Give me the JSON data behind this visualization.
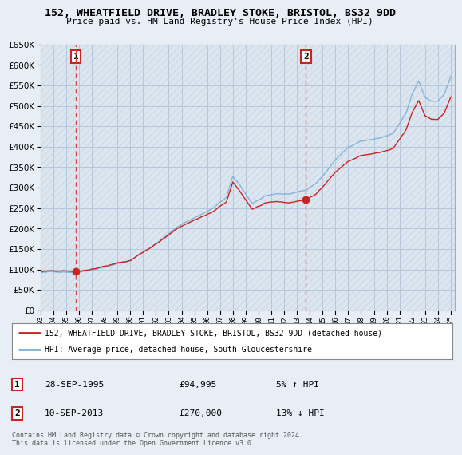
{
  "title": "152, WHEATFIELD DRIVE, BRADLEY STOKE, BRISTOL, BS32 9DD",
  "subtitle": "Price paid vs. HM Land Registry's House Price Index (HPI)",
  "ylim": [
    0,
    650000
  ],
  "yticks": [
    0,
    50000,
    100000,
    150000,
    200000,
    250000,
    300000,
    350000,
    400000,
    450000,
    500000,
    550000,
    600000,
    650000
  ],
  "legend_line1": "152, WHEATFIELD DRIVE, BRADLEY STOKE, BRISTOL, BS32 9DD (detached house)",
  "legend_line2": "HPI: Average price, detached house, South Gloucestershire",
  "annotation1_label": "1",
  "annotation1_date": "28-SEP-1995",
  "annotation1_price": "£94,995",
  "annotation1_hpi": "5% ↑ HPI",
  "annotation2_label": "2",
  "annotation2_date": "10-SEP-2013",
  "annotation2_price": "£270,000",
  "annotation2_hpi": "13% ↓ HPI",
  "footnote": "Contains HM Land Registry data © Crown copyright and database right 2024.\nThis data is licensed under the Open Government Licence v3.0.",
  "sale1_x": 1995.75,
  "sale1_price": 94995,
  "sale2_x": 2013.7,
  "sale2_price": 270000,
  "hpi_color": "#7bafd4",
  "price_color": "#cc2222",
  "vline_color": "#dd4444",
  "background_color": "#e8eef5",
  "plot_bg_color": "#dce6f0",
  "hatch_color": "#c8d4e0",
  "grid_color": "#b0c4d8"
}
